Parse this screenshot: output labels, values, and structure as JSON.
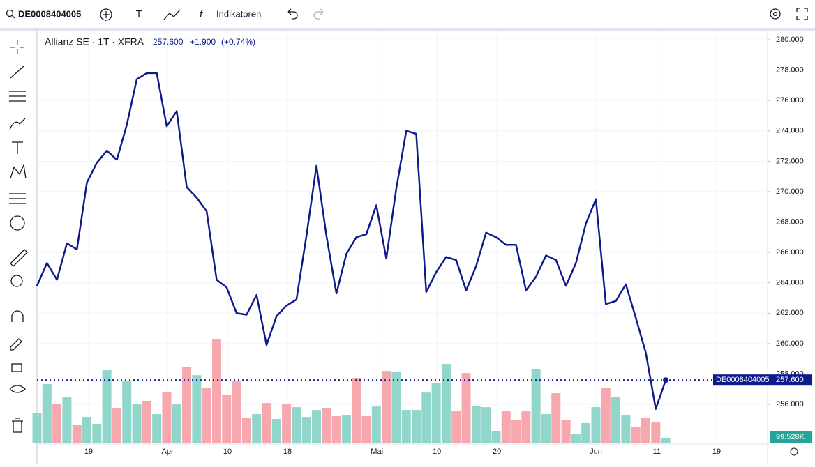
{
  "toolbar": {
    "symbol": "DE0008404005",
    "text_tool": "T",
    "indicators": "Indikatoren"
  },
  "chart_data": {
    "type": "line",
    "title": "Allianz SE · 1T · XFRA",
    "price_label": "257.600",
    "change_label": "+1.900",
    "change_pct_label": "(+0.74%)",
    "x": [
      0,
      1,
      2,
      3,
      4,
      5,
      6,
      7,
      8,
      9,
      10,
      11,
      12,
      13,
      14,
      15,
      16,
      17,
      18,
      19,
      20,
      21,
      22,
      23,
      24,
      25,
      26,
      27,
      28,
      29,
      30,
      31,
      32,
      33,
      34,
      35,
      36,
      37,
      38,
      39,
      40,
      41,
      42,
      43,
      44,
      45,
      46,
      47,
      48,
      49,
      50,
      51,
      52,
      53,
      54,
      55,
      56,
      57,
      58,
      59,
      60,
      61,
      62,
      63
    ],
    "series": [
      {
        "color": "#0c1a8c",
        "values": [
          263.8,
          265.3,
          264.2,
          266.6,
          266.2,
          270.6,
          271.9,
          272.7,
          272.1,
          274.4,
          277.4,
          277.8,
          277.8,
          274.3,
          275.3,
          270.3,
          269.6,
          268.7,
          264.2,
          263.7,
          262.0,
          261.9,
          263.2,
          259.9,
          261.8,
          262.5,
          262.9,
          267.1,
          271.7,
          267.1,
          263.3,
          265.9,
          267.0,
          267.2,
          269.1,
          265.6,
          270.2,
          274.0,
          273.8,
          263.4,
          264.7,
          265.7,
          265.5,
          263.5,
          265.1,
          267.3,
          267.0,
          266.5,
          266.5,
          263.5,
          264.4,
          265.8,
          265.5,
          263.8,
          265.3,
          267.9,
          269.5,
          262.6,
          262.8,
          263.9,
          261.7,
          259.4,
          255.7,
          257.6
        ]
      }
    ],
    "volume": {
      "values": [
        611,
        1193,
        795,
        923,
        355,
        525,
        383,
        1477,
        710,
        1250,
        781,
        852,
        582,
        1037,
        781,
        1548,
        1377,
        1122,
        2116,
        980,
        1250,
        511,
        582,
        809,
        483,
        781,
        724,
        525,
        667,
        710,
        540,
        568,
        1306,
        540,
        738,
        1463,
        1448,
        667,
        667,
        1022,
        1221,
        1605,
        653,
        1420,
        753,
        724,
        241,
        639,
        469,
        639,
        1505,
        582,
        1008,
        469,
        185,
        398,
        724,
        1122,
        923,
        554,
        312,
        497,
        426,
        99.528
      ],
      "colors": [
        "#91d6ca",
        "#91d6ca",
        "#f7a7ae",
        "#91d6ca",
        "#f7a7ae",
        "#91d6ca",
        "#91d6ca",
        "#91d6ca",
        "#f7a7ae",
        "#91d6ca",
        "#91d6ca",
        "#f7a7ae",
        "#91d6ca",
        "#f7a7ae",
        "#91d6ca",
        "#f7a7ae",
        "#91d6ca",
        "#f7a7ae",
        "#f7a7ae",
        "#f7a7ae",
        "#f7a7ae",
        "#f7a7ae",
        "#91d6ca",
        "#f7a7ae",
        "#91d6ca",
        "#f7a7ae",
        "#91d6ca",
        "#91d6ca",
        "#91d6ca",
        "#f7a7ae",
        "#f7a7ae",
        "#91d6ca",
        "#f7a7ae",
        "#f7a7ae",
        "#91d6ca",
        "#f7a7ae",
        "#91d6ca",
        "#91d6ca",
        "#91d6ca",
        "#91d6ca",
        "#91d6ca",
        "#91d6ca",
        "#f7a7ae",
        "#f7a7ae",
        "#91d6ca",
        "#91d6ca",
        "#91d6ca",
        "#f7a7ae",
        "#f7a7ae",
        "#f7a7ae",
        "#91d6ca",
        "#91d6ca",
        "#f7a7ae",
        "#f7a7ae",
        "#91d6ca",
        "#91d6ca",
        "#91d6ca",
        "#f7a7ae",
        "#91d6ca",
        "#91d6ca",
        "#f7a7ae",
        "#f7a7ae",
        "#f7a7ae",
        "#91d6ca"
      ],
      "last_label": "99.528K"
    },
    "last_price": {
      "value": 257.6,
      "label": "257.600"
    },
    "xlim": [
      0,
      73.2
    ],
    "xticks": [
      {
        "value": 5.17,
        "label": "19"
      },
      {
        "value": 13.08,
        "label": "Apr"
      },
      {
        "value": 19.09,
        "label": "10"
      },
      {
        "value": 25.1,
        "label": "18"
      },
      {
        "value": 34.06,
        "label": "Mai"
      },
      {
        "value": 40.07,
        "label": "10"
      },
      {
        "value": 46.08,
        "label": "20"
      },
      {
        "value": 56.0,
        "label": "Jun"
      },
      {
        "value": 62.1,
        "label": "11"
      },
      {
        "value": 68.1,
        "label": "19"
      }
    ],
    "ylim": [
      253.25,
      280.55
    ],
    "yticks": [
      {
        "value": 256,
        "label": "256.000"
      },
      {
        "value": 258,
        "label": "258.000"
      },
      {
        "value": 260,
        "label": "260.000"
      },
      {
        "value": 262,
        "label": "262.000"
      },
      {
        "value": 264,
        "label": "264.000"
      },
      {
        "value": 266,
        "label": "266.000"
      },
      {
        "value": 268,
        "label": "268.000"
      },
      {
        "value": 270,
        "label": "270.000"
      },
      {
        "value": 272,
        "label": "272.000"
      },
      {
        "value": 274,
        "label": "274.000"
      },
      {
        "value": 276,
        "label": "276.000"
      },
      {
        "value": 278,
        "label": "278.000"
      },
      {
        "value": 280,
        "label": "280.000"
      }
    ],
    "grid": true
  }
}
